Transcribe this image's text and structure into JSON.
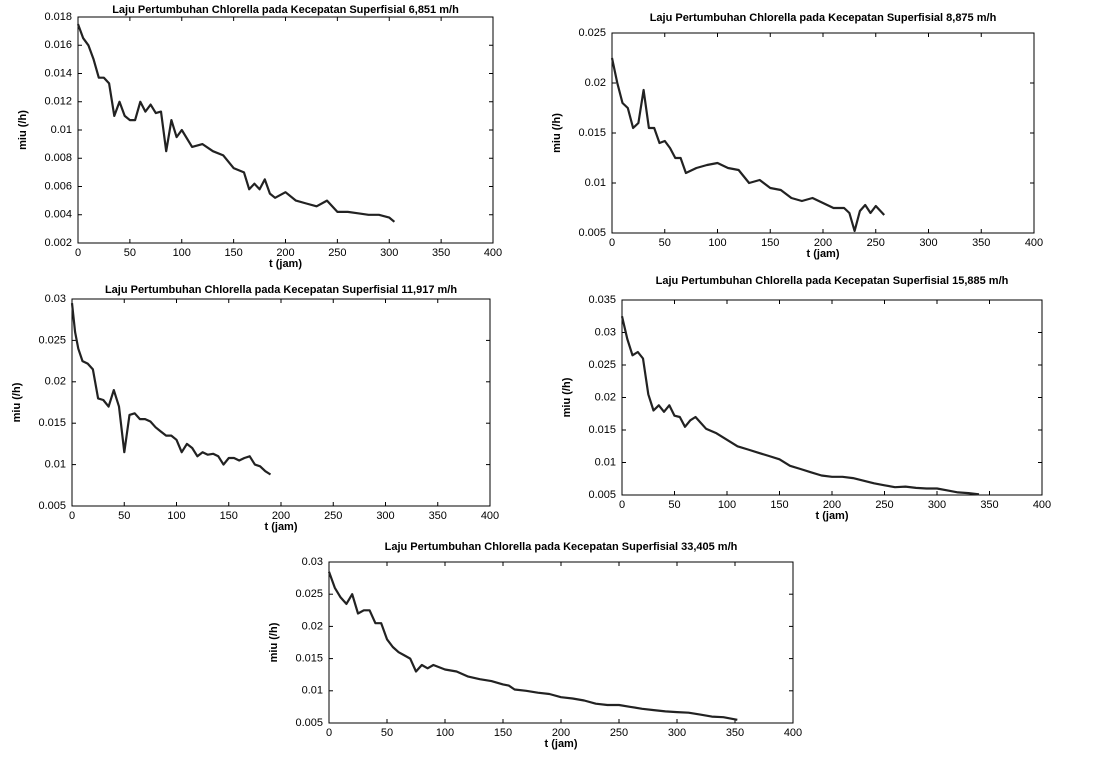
{
  "chart_data": [
    {
      "type": "line",
      "title": "Laju Pertumbuhan Chlorella pada Kecepatan Superfisial 6,851 m/h",
      "x_label": "t (jam)",
      "y_label": "miu (/h)",
      "color": "#222222",
      "x": [
        0,
        5,
        10,
        15,
        20,
        25,
        30,
        35,
        40,
        45,
        50,
        55,
        60,
        65,
        70,
        75,
        80,
        85,
        90,
        95,
        100,
        110,
        120,
        130,
        140,
        150,
        160,
        165,
        170,
        175,
        180,
        185,
        190,
        200,
        210,
        220,
        230,
        240,
        250,
        260,
        270,
        280,
        290,
        300,
        305
      ],
      "values": [
        0.0175,
        0.0165,
        0.016,
        0.015,
        0.0137,
        0.0137,
        0.0133,
        0.011,
        0.012,
        0.011,
        0.0107,
        0.0107,
        0.012,
        0.0113,
        0.0118,
        0.0112,
        0.0113,
        0.0085,
        0.0107,
        0.0095,
        0.01,
        0.0088,
        0.009,
        0.0085,
        0.0082,
        0.0073,
        0.007,
        0.0058,
        0.0062,
        0.0058,
        0.0065,
        0.0055,
        0.0052,
        0.0056,
        0.005,
        0.0048,
        0.0046,
        0.005,
        0.0042,
        0.0042,
        0.0041,
        0.004,
        0.004,
        0.0038,
        0.0035
      ],
      "xlim": [
        0,
        400
      ],
      "xticks": [
        0,
        50,
        100,
        150,
        200,
        250,
        300,
        350,
        400
      ],
      "ylim": [
        0.002,
        0.018
      ],
      "yticks": [
        0.002,
        0.004,
        0.006,
        0.008,
        0.01,
        0.012,
        0.014,
        0.016,
        0.018
      ]
    },
    {
      "type": "line",
      "title": "Laju Pertumbuhan Chlorella pada Kecepatan Superfisial 8,875 m/h",
      "x_label": "t (jam)",
      "y_label": "miu (/h)",
      "color": "#222222",
      "x": [
        0,
        5,
        10,
        15,
        20,
        25,
        30,
        35,
        40,
        45,
        50,
        55,
        60,
        65,
        70,
        80,
        90,
        100,
        110,
        120,
        130,
        140,
        150,
        160,
        170,
        180,
        190,
        200,
        210,
        220,
        225,
        230,
        235,
        240,
        245,
        250,
        258
      ],
      "values": [
        0.0225,
        0.02,
        0.018,
        0.0175,
        0.0155,
        0.016,
        0.0193,
        0.0155,
        0.0155,
        0.014,
        0.0142,
        0.0135,
        0.0125,
        0.0125,
        0.011,
        0.0115,
        0.0118,
        0.012,
        0.0115,
        0.0113,
        0.01,
        0.0103,
        0.0095,
        0.0093,
        0.0085,
        0.0082,
        0.0085,
        0.008,
        0.0075,
        0.0075,
        0.007,
        0.0052,
        0.0072,
        0.0078,
        0.007,
        0.0077,
        0.0068
      ],
      "xlim": [
        0,
        400
      ],
      "xticks": [
        0,
        50,
        100,
        150,
        200,
        250,
        300,
        350,
        400
      ],
      "ylim": [
        0.005,
        0.025
      ],
      "yticks": [
        0.005,
        0.01,
        0.015,
        0.02,
        0.025
      ]
    },
    {
      "type": "line",
      "title": "Laju Pertumbuhan Chlorella pada Kecepatan Superfisial 11,917 m/h",
      "x_label": "t (jam)",
      "y_label": "miu (/h)",
      "color": "#222222",
      "x": [
        0,
        3,
        6,
        10,
        15,
        20,
        25,
        30,
        35,
        40,
        45,
        50,
        55,
        60,
        65,
        70,
        75,
        80,
        85,
        90,
        95,
        100,
        105,
        110,
        115,
        120,
        125,
        130,
        135,
        140,
        145,
        150,
        155,
        160,
        165,
        170,
        175,
        180,
        185,
        190
      ],
      "values": [
        0.0295,
        0.026,
        0.024,
        0.0225,
        0.0222,
        0.0215,
        0.018,
        0.0178,
        0.017,
        0.019,
        0.017,
        0.0115,
        0.016,
        0.0162,
        0.0155,
        0.0155,
        0.0152,
        0.0145,
        0.014,
        0.0135,
        0.0135,
        0.013,
        0.0115,
        0.0125,
        0.012,
        0.011,
        0.0115,
        0.0112,
        0.0113,
        0.011,
        0.01,
        0.0108,
        0.0108,
        0.0105,
        0.0108,
        0.011,
        0.01,
        0.0098,
        0.0092,
        0.0088
      ],
      "xlim": [
        0,
        400
      ],
      "xticks": [
        0,
        50,
        100,
        150,
        200,
        250,
        300,
        350,
        400
      ],
      "ylim": [
        0.005,
        0.03
      ],
      "yticks": [
        0.005,
        0.01,
        0.015,
        0.02,
        0.025,
        0.03
      ]
    },
    {
      "type": "line",
      "title": "Laju Pertumbuhan Chlorella pada Kecepatan Superfisial 15,885 m/h",
      "x_label": "t (jam)",
      "y_label": "miu (/h)",
      "color": "#222222",
      "x": [
        0,
        5,
        10,
        15,
        20,
        25,
        30,
        35,
        40,
        45,
        50,
        55,
        60,
        65,
        70,
        80,
        90,
        100,
        110,
        120,
        130,
        140,
        150,
        160,
        170,
        180,
        190,
        200,
        210,
        220,
        230,
        240,
        250,
        260,
        270,
        280,
        290,
        300,
        310,
        320,
        330,
        340
      ],
      "values": [
        0.0325,
        0.029,
        0.0265,
        0.027,
        0.026,
        0.0205,
        0.018,
        0.0188,
        0.0178,
        0.0188,
        0.0172,
        0.017,
        0.0155,
        0.0165,
        0.017,
        0.0152,
        0.0145,
        0.0135,
        0.0125,
        0.012,
        0.0115,
        0.011,
        0.0105,
        0.0095,
        0.009,
        0.0085,
        0.008,
        0.0078,
        0.0078,
        0.0076,
        0.0072,
        0.0068,
        0.0065,
        0.0062,
        0.0063,
        0.0061,
        0.006,
        0.006,
        0.0057,
        0.0054,
        0.0053,
        0.0051
      ],
      "xlim": [
        0,
        400
      ],
      "xticks": [
        0,
        50,
        100,
        150,
        200,
        250,
        300,
        350,
        400
      ],
      "ylim": [
        0.005,
        0.035
      ],
      "yticks": [
        0.005,
        0.01,
        0.015,
        0.02,
        0.025,
        0.03,
        0.035
      ]
    },
    {
      "type": "line",
      "title": "Laju Pertumbuhan Chlorella pada Kecepatan Superfisial 33,405 m/h",
      "x_label": "t (jam)",
      "y_label": "miu (/h)",
      "color": "#222222",
      "x": [
        0,
        5,
        10,
        15,
        20,
        25,
        30,
        35,
        40,
        45,
        50,
        55,
        60,
        65,
        70,
        75,
        80,
        85,
        90,
        100,
        110,
        120,
        130,
        140,
        150,
        155,
        160,
        170,
        180,
        190,
        200,
        210,
        220,
        230,
        240,
        250,
        260,
        270,
        280,
        290,
        300,
        310,
        320,
        330,
        340,
        352
      ],
      "values": [
        0.0285,
        0.026,
        0.0245,
        0.0235,
        0.025,
        0.022,
        0.0225,
        0.0225,
        0.0205,
        0.0205,
        0.018,
        0.0168,
        0.016,
        0.0155,
        0.015,
        0.013,
        0.014,
        0.0135,
        0.014,
        0.0133,
        0.013,
        0.0122,
        0.0118,
        0.0115,
        0.011,
        0.0108,
        0.0102,
        0.01,
        0.0097,
        0.0095,
        0.009,
        0.0088,
        0.0085,
        0.008,
        0.0078,
        0.0078,
        0.0075,
        0.0072,
        0.007,
        0.0068,
        0.0067,
        0.0066,
        0.0063,
        0.006,
        0.0059,
        0.0055
      ],
      "xlim": [
        0,
        400
      ],
      "xticks": [
        0,
        50,
        100,
        150,
        200,
        250,
        300,
        350,
        400
      ],
      "ylim": [
        0.005,
        0.03
      ],
      "yticks": [
        0.005,
        0.01,
        0.015,
        0.02,
        0.025,
        0.03
      ]
    }
  ]
}
